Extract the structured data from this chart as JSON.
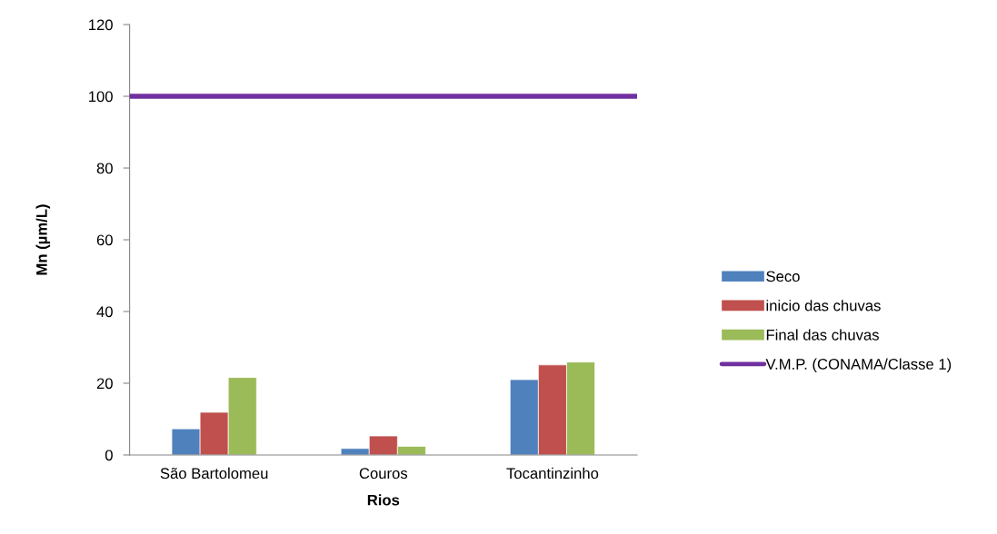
{
  "chart_data": {
    "type": "bar",
    "categories": [
      "São Bartolomeu",
      "Couros",
      "Tocantinzinho"
    ],
    "series": [
      {
        "name": "Seco",
        "color": "#4f81bd",
        "values": [
          7.3,
          1.8,
          21.0
        ]
      },
      {
        "name": "inicio das chuvas",
        "color": "#c0504d",
        "values": [
          11.9,
          5.3,
          25.1
        ]
      },
      {
        "name": "Final das chuvas",
        "color": "#9bbb59",
        "values": [
          21.6,
          2.4,
          25.9
        ]
      }
    ],
    "ref_lines": [
      {
        "axis": "y",
        "value": 100,
        "label": "V.M.P. (CONAMA/Classe 1)",
        "color": "#7030a0"
      }
    ],
    "xlabel": "Rios",
    "ylabel": "Mn (µm/L)",
    "ylim": [
      0,
      120
    ],
    "yticks": [
      0,
      20,
      40,
      60,
      80,
      100,
      120
    ],
    "grid": false,
    "legend": "right"
  }
}
